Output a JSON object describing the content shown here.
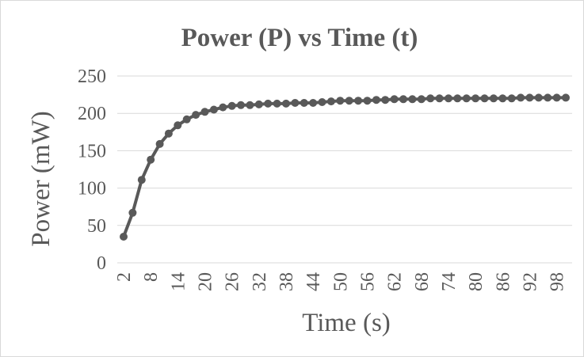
{
  "chart_data": {
    "type": "line",
    "title": "Power (P) vs Time (t)",
    "xlabel": "Time (s)",
    "ylabel": "Power (mW)",
    "ylim": [
      0,
      250
    ],
    "yticks": [
      "0",
      "50",
      "100",
      "150",
      "200",
      "250"
    ],
    "xtick_labels": [
      "2",
      "8",
      "14",
      "20",
      "26",
      "32",
      "38",
      "44",
      "50",
      "56",
      "62",
      "68",
      "74",
      "80",
      "86",
      "92",
      "98"
    ],
    "grid": true,
    "legend": "none",
    "line_color": "#595959",
    "x": [
      2,
      4,
      6,
      8,
      10,
      12,
      14,
      16,
      18,
      20,
      22,
      24,
      26,
      28,
      30,
      32,
      34,
      36,
      38,
      40,
      42,
      44,
      46,
      48,
      50,
      52,
      54,
      56,
      58,
      60,
      62,
      64,
      66,
      68,
      70,
      72,
      74,
      76,
      78,
      80,
      82,
      84,
      86,
      88,
      90,
      92,
      94,
      96,
      98,
      100
    ],
    "series": [
      {
        "values": [
          35,
          67,
          111,
          138,
          159,
          173,
          184,
          192,
          198,
          202,
          205,
          208,
          210,
          211,
          211,
          212,
          213,
          213,
          213,
          214,
          214,
          214,
          215,
          216,
          217,
          217,
          217,
          217,
          218,
          218,
          219,
          219,
          219,
          219,
          220,
          220,
          220,
          220,
          220,
          220,
          220,
          220,
          220,
          220,
          221,
          221,
          221,
          221,
          221,
          221
        ]
      }
    ]
  }
}
